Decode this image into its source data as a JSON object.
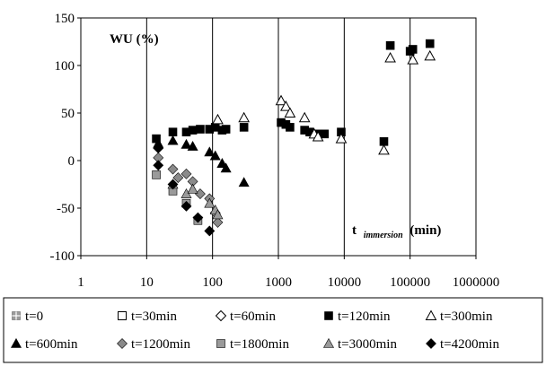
{
  "chart_data": {
    "type": "scatter",
    "title": "",
    "ylabel": "WU (%)",
    "xlabel_main": "t",
    "xlabel_sub": "immersion",
    "xlabel_unit": "(min)",
    "x_scale": "log",
    "xlim": [
      1,
      1000000
    ],
    "ylim": [
      -100,
      150
    ],
    "x_ticks": [
      1,
      10,
      100,
      1000,
      10000,
      100000,
      1000000
    ],
    "x_tick_labels": [
      "1",
      "10",
      "100",
      "1000",
      "10000",
      "100000",
      "1000000"
    ],
    "y_ticks": [
      -100,
      -50,
      0,
      50,
      100,
      150
    ],
    "y_tick_labels": [
      "-100",
      "-50",
      "0",
      "50",
      "100",
      "150"
    ],
    "grid": "vertical",
    "legend_position": "bottom",
    "series": [
      {
        "name": "t=0",
        "marker": "plus-square",
        "color": "#9a9a9a",
        "points": []
      },
      {
        "name": "t=30min",
        "marker": "square-open",
        "color": "#000000",
        "points": []
      },
      {
        "name": "t=60min",
        "marker": "diamond-open",
        "color": "#000000",
        "points": []
      },
      {
        "name": "t=120min",
        "marker": "square-filled",
        "color": "#000000",
        "points": [
          [
            14,
            23
          ],
          [
            25,
            30
          ],
          [
            40,
            30
          ],
          [
            50,
            32
          ],
          [
            65,
            33
          ],
          [
            90,
            33
          ],
          [
            110,
            35
          ],
          [
            140,
            32
          ],
          [
            160,
            33
          ],
          [
            300,
            35
          ],
          [
            1100,
            40
          ],
          [
            1300,
            38
          ],
          [
            1500,
            35
          ],
          [
            2500,
            32
          ],
          [
            3000,
            30
          ],
          [
            4000,
            28
          ],
          [
            5000,
            28
          ],
          [
            9000,
            30
          ],
          [
            40000,
            20
          ],
          [
            50000,
            121
          ],
          [
            100000,
            115
          ],
          [
            110000,
            117
          ],
          [
            200000,
            123
          ]
        ]
      },
      {
        "name": "t=300min",
        "marker": "triangle-open",
        "color": "#000000",
        "points": [
          [
            120,
            43
          ],
          [
            300,
            45
          ],
          [
            1100,
            63
          ],
          [
            1300,
            57
          ],
          [
            1500,
            50
          ],
          [
            2500,
            45
          ],
          [
            3500,
            28
          ],
          [
            4000,
            25
          ],
          [
            9000,
            23
          ],
          [
            40000,
            11
          ],
          [
            50000,
            108
          ],
          [
            110000,
            106
          ],
          [
            200000,
            110
          ]
        ]
      },
      {
        "name": "t=600min",
        "marker": "triangle-filled",
        "color": "#000000",
        "points": [
          [
            15,
            18
          ],
          [
            25,
            21
          ],
          [
            40,
            17
          ],
          [
            50,
            15
          ],
          [
            90,
            9
          ],
          [
            110,
            5
          ],
          [
            140,
            -3
          ],
          [
            160,
            -8
          ],
          [
            300,
            -23
          ]
        ]
      },
      {
        "name": "t=1200min",
        "marker": "diamond-filled",
        "color": "#8a8a8a",
        "points": [
          [
            15,
            3
          ],
          [
            25,
            -9
          ],
          [
            30,
            -18
          ],
          [
            40,
            -14
          ],
          [
            50,
            -22
          ],
          [
            65,
            -35
          ],
          [
            90,
            -40
          ],
          [
            110,
            -55
          ],
          [
            120,
            -65
          ]
        ]
      },
      {
        "name": "t=1800min",
        "marker": "square-filled",
        "color": "#9a9a9a",
        "points": [
          [
            14,
            -15
          ],
          [
            25,
            -32
          ],
          [
            40,
            -45
          ],
          [
            60,
            -63
          ]
        ]
      },
      {
        "name": "t=3000min",
        "marker": "triangle-filled",
        "color": "#9a9a9a",
        "points": [
          [
            25,
            -25
          ],
          [
            40,
            -35
          ],
          [
            50,
            -30
          ],
          [
            90,
            -45
          ],
          [
            110,
            -52
          ],
          [
            120,
            -57
          ]
        ]
      },
      {
        "name": "t=4200min",
        "marker": "diamond-filled",
        "color": "#000000",
        "points": [
          [
            15,
            13
          ],
          [
            15,
            -5
          ],
          [
            25,
            -25
          ],
          [
            40,
            -48
          ],
          [
            60,
            -60
          ],
          [
            90,
            -74
          ]
        ]
      }
    ]
  }
}
